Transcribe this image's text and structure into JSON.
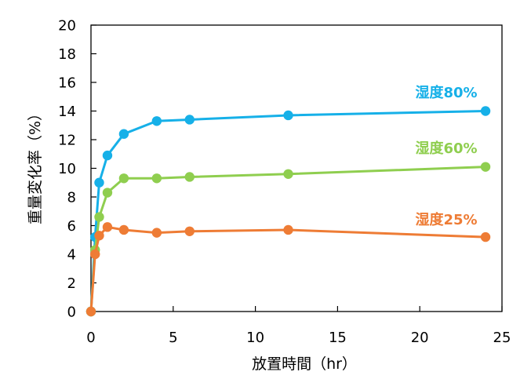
{
  "chart_data": {
    "type": "scatter",
    "xlabel": "放置時間（hr）",
    "ylabel": "重量変化率（%）",
    "xlim": [
      0,
      25
    ],
    "ylim": [
      0,
      20
    ],
    "x_ticks": [
      0,
      5,
      10,
      15,
      20,
      25
    ],
    "y_ticks": [
      0,
      2,
      4,
      6,
      8,
      10,
      12,
      14,
      16,
      18,
      20
    ],
    "x_tick_labels": [
      "0",
      "5",
      "10",
      "15",
      "20",
      "25"
    ],
    "y_tick_labels": [
      "0",
      "2",
      "4",
      "6",
      "8",
      "10",
      "12",
      "14",
      "16",
      "18",
      "20"
    ],
    "grid": false,
    "legend": "inline labels near right end of each series",
    "series": [
      {
        "name": "湿度80%",
        "color": "#16b0e8",
        "x": [
          0,
          0.25,
          0.5,
          1,
          2,
          4,
          6,
          12,
          24
        ],
        "y": [
          0,
          5.2,
          9.0,
          10.9,
          12.4,
          13.3,
          13.4,
          13.7,
          14.0
        ]
      },
      {
        "name": "湿度60%",
        "color": "#8fce4f",
        "x": [
          0,
          0.25,
          0.5,
          1,
          2,
          4,
          6,
          12,
          24
        ],
        "y": [
          0,
          4.3,
          6.6,
          8.3,
          9.3,
          9.3,
          9.4,
          9.6,
          10.1
        ]
      },
      {
        "name": "湿度25%",
        "color": "#ee7c35",
        "x": [
          0,
          0.25,
          0.5,
          1,
          2,
          4,
          6,
          12,
          24
        ],
        "y": [
          0,
          4.0,
          5.3,
          5.9,
          5.7,
          5.5,
          5.6,
          5.7,
          5.2
        ]
      }
    ]
  }
}
